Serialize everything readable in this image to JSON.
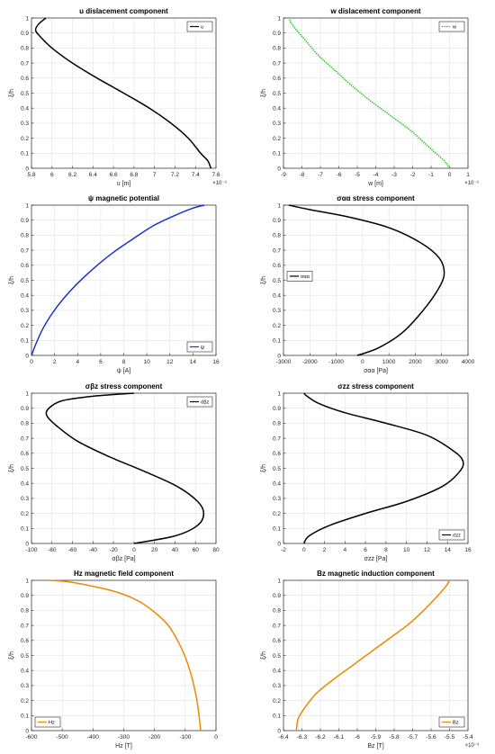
{
  "chart_data": [
    {
      "type": "line",
      "title": "u dislacement component",
      "xlabel": "u [m]",
      "ylabel": "ξ/h",
      "xlim": [
        5.8,
        7.6
      ],
      "ylim": [
        0,
        1
      ],
      "x_ticks": [
        "5.8",
        "6",
        "6.2",
        "6.4",
        "6.6",
        "6.8",
        "7",
        "7.2",
        "7.4",
        "7.6"
      ],
      "y_ticks": [
        "0",
        "0.1",
        "0.2",
        "0.3",
        "0.4",
        "0.5",
        "0.6",
        "0.7",
        "0.8",
        "0.9",
        "1"
      ],
      "x_multiplier": "×10⁻⁹",
      "grid": true,
      "legend_position": "top-right",
      "series": [
        {
          "name": "u",
          "color": "#000000",
          "x": [
            7.55,
            7.52,
            7.45,
            7.33,
            7.16,
            6.95,
            6.7,
            6.44,
            6.2,
            6.0,
            5.88,
            5.84,
            5.87,
            5.94
          ],
          "y": [
            0,
            0.05,
            0.1,
            0.2,
            0.3,
            0.4,
            0.5,
            0.6,
            0.7,
            0.8,
            0.88,
            0.92,
            0.96,
            1.0
          ]
        }
      ]
    },
    {
      "type": "line",
      "title": "w dislacement component",
      "xlabel": "w [m]",
      "ylabel": "ξ/h",
      "xlim": [
        -9,
        1
      ],
      "ylim": [
        0,
        1
      ],
      "x_ticks": [
        "-9",
        "-8",
        "-7",
        "-6",
        "-5",
        "-4",
        "-3",
        "-2",
        "-1",
        "0",
        "1"
      ],
      "y_ticks": [
        "0",
        "0.1",
        "0.2",
        "0.3",
        "0.4",
        "0.5",
        "0.6",
        "0.7",
        "0.8",
        "0.9",
        "1"
      ],
      "x_multiplier": "×10⁻⁹",
      "grid": true,
      "legend_position": "top-right",
      "series": [
        {
          "name": "w",
          "color": "#22cc22",
          "dashed": true,
          "x": [
            0,
            -0.3,
            -1.2,
            -2.1,
            -3.2,
            -4.3,
            -5.3,
            -6.2,
            -7.1,
            -7.8,
            -8.3,
            -8.6,
            -8.7
          ],
          "y": [
            0,
            0.05,
            0.15,
            0.25,
            0.35,
            0.45,
            0.55,
            0.65,
            0.75,
            0.85,
            0.92,
            0.97,
            1.0
          ]
        }
      ]
    },
    {
      "type": "line",
      "title": "ψ magnetic potential",
      "xlabel": "ψ [A]",
      "ylabel": "ξ/h",
      "xlim": [
        0,
        16
      ],
      "ylim": [
        0,
        1
      ],
      "x_ticks": [
        "0",
        "2",
        "4",
        "6",
        "8",
        "10",
        "12",
        "14",
        "16"
      ],
      "y_ticks": [
        "0",
        "0.1",
        "0.2",
        "0.3",
        "0.4",
        "0.5",
        "0.6",
        "0.7",
        "0.8",
        "0.9",
        "1"
      ],
      "grid": true,
      "legend_position": "bottom-right",
      "series": [
        {
          "name": "ψ",
          "color": "#1a33cc",
          "x": [
            0,
            0.4,
            1,
            1.8,
            2.8,
            4.0,
            5.4,
            7.0,
            8.7,
            10.5,
            12.4,
            14.0,
            15.0
          ],
          "y": [
            0,
            0.08,
            0.18,
            0.28,
            0.38,
            0.48,
            0.58,
            0.68,
            0.77,
            0.86,
            0.93,
            0.98,
            1.0
          ]
        }
      ]
    },
    {
      "type": "line",
      "title": "σαα stress component",
      "xlabel": "σαα [Pa]",
      "ylabel": "ξ/h",
      "xlim": [
        -3000,
        4000
      ],
      "ylim": [
        0,
        1
      ],
      "x_ticks": [
        "-3000",
        "-2000",
        "-1000",
        "0",
        "1000",
        "2000",
        "3000",
        "4000"
      ],
      "y_ticks": [
        "0",
        "0.1",
        "0.2",
        "0.3",
        "0.4",
        "0.5",
        "0.6",
        "0.7",
        "0.8",
        "0.9",
        "1"
      ],
      "grid": true,
      "legend_position": "middle-left",
      "series": [
        {
          "name": "σαα",
          "color": "#000000",
          "x": [
            -200,
            600,
            1500,
            2300,
            2900,
            3100,
            2900,
            2200,
            1000,
            -500,
            -2000,
            -2800
          ],
          "y": [
            0,
            0.05,
            0.15,
            0.3,
            0.45,
            0.55,
            0.65,
            0.75,
            0.85,
            0.92,
            0.97,
            1.0
          ]
        }
      ]
    },
    {
      "type": "line",
      "title": "σβz stress component",
      "xlabel": "σβz [Pa]",
      "ylabel": "ξ/h",
      "xlim": [
        -100,
        80
      ],
      "ylim": [
        0,
        1
      ],
      "x_ticks": [
        "-100",
        "-80",
        "-60",
        "-40",
        "-20",
        "0",
        "20",
        "40",
        "60",
        "80"
      ],
      "y_ticks": [
        "0",
        "0.1",
        "0.2",
        "0.3",
        "0.4",
        "0.5",
        "0.6",
        "0.7",
        "0.8",
        "0.9",
        "1"
      ],
      "grid": true,
      "legend_position": "top-right",
      "series": [
        {
          "name": "σβz",
          "color": "#000000",
          "x": [
            0,
            40,
            62,
            68,
            62,
            42,
            10,
            -25,
            -55,
            -75,
            -85,
            -83,
            -70,
            -40,
            0
          ],
          "y": [
            0,
            0.05,
            0.12,
            0.2,
            0.28,
            0.38,
            0.48,
            0.58,
            0.68,
            0.78,
            0.85,
            0.9,
            0.95,
            0.98,
            1.0
          ]
        }
      ]
    },
    {
      "type": "line",
      "title": "σzz stress component",
      "xlabel": "σzz [Pa]",
      "ylabel": "ξ/h",
      "xlim": [
        -2,
        16
      ],
      "ylim": [
        0,
        1
      ],
      "x_ticks": [
        "-2",
        "0",
        "2",
        "4",
        "6",
        "8",
        "10",
        "12",
        "14",
        "16"
      ],
      "y_ticks": [
        "0",
        "0.1",
        "0.2",
        "0.3",
        "0.4",
        "0.5",
        "0.6",
        "0.7",
        "0.8",
        "0.9",
        "1"
      ],
      "grid": true,
      "legend_position": "bottom-right",
      "series": [
        {
          "name": "σzz",
          "color": "#000000",
          "x": [
            0,
            0.5,
            2.5,
            6,
            10,
            13.5,
            15.2,
            15.5,
            14.5,
            12,
            8,
            4,
            1.5,
            0.3,
            0
          ],
          "y": [
            0,
            0.05,
            0.12,
            0.2,
            0.28,
            0.38,
            0.48,
            0.55,
            0.62,
            0.72,
            0.8,
            0.87,
            0.93,
            0.98,
            1.0
          ]
        }
      ]
    },
    {
      "type": "line",
      "title": "Hz magnetic field component",
      "xlabel": "Hz [T]",
      "ylabel": "ξ/h",
      "xlim": [
        -600,
        0
      ],
      "ylim": [
        0,
        1
      ],
      "x_ticks": [
        "-600",
        "-500",
        "-400",
        "-300",
        "-200",
        "-100",
        "0"
      ],
      "y_ticks": [
        "0",
        "0.1",
        "0.2",
        "0.3",
        "0.4",
        "0.5",
        "0.6",
        "0.7",
        "0.8",
        "0.9",
        "1"
      ],
      "grid": true,
      "legend_position": "bottom-left",
      "series": [
        {
          "name": "Hz",
          "color": "#ee8800",
          "x": [
            -50,
            -55,
            -62,
            -72,
            -85,
            -102,
            -125,
            -155,
            -195,
            -250,
            -320,
            -400,
            -480,
            -540
          ],
          "y": [
            0,
            0.1,
            0.2,
            0.3,
            0.4,
            0.5,
            0.6,
            0.7,
            0.78,
            0.86,
            0.92,
            0.96,
            0.99,
            1.0
          ]
        }
      ]
    },
    {
      "type": "line",
      "title": "Bz magnetic induction component",
      "xlabel": "Bz [T]",
      "ylabel": "ξ/h",
      "xlim": [
        -6.4,
        -5.4
      ],
      "ylim": [
        0,
        1
      ],
      "x_ticks": [
        "-6.4",
        "-6.3",
        "-6.2",
        "-6.1",
        "-6",
        "-5.9",
        "-5.8",
        "-5.7",
        "-5.6",
        "-5.5",
        "-5.4"
      ],
      "y_ticks": [
        "0",
        "0.1",
        "0.2",
        "0.3",
        "0.4",
        "0.5",
        "0.6",
        "0.7",
        "0.8",
        "0.9",
        "1"
      ],
      "x_multiplier": "×10⁻³",
      "grid": true,
      "legend_position": "bottom-right",
      "series": [
        {
          "name": "Bz",
          "color": "#ee8800",
          "x": [
            -6.33,
            -6.32,
            -6.28,
            -6.22,
            -6.13,
            -6.03,
            -5.93,
            -5.83,
            -5.73,
            -5.64,
            -5.57,
            -5.52,
            -5.5
          ],
          "y": [
            0,
            0.08,
            0.16,
            0.25,
            0.34,
            0.43,
            0.52,
            0.61,
            0.7,
            0.8,
            0.89,
            0.96,
            1.0
          ]
        }
      ]
    }
  ]
}
